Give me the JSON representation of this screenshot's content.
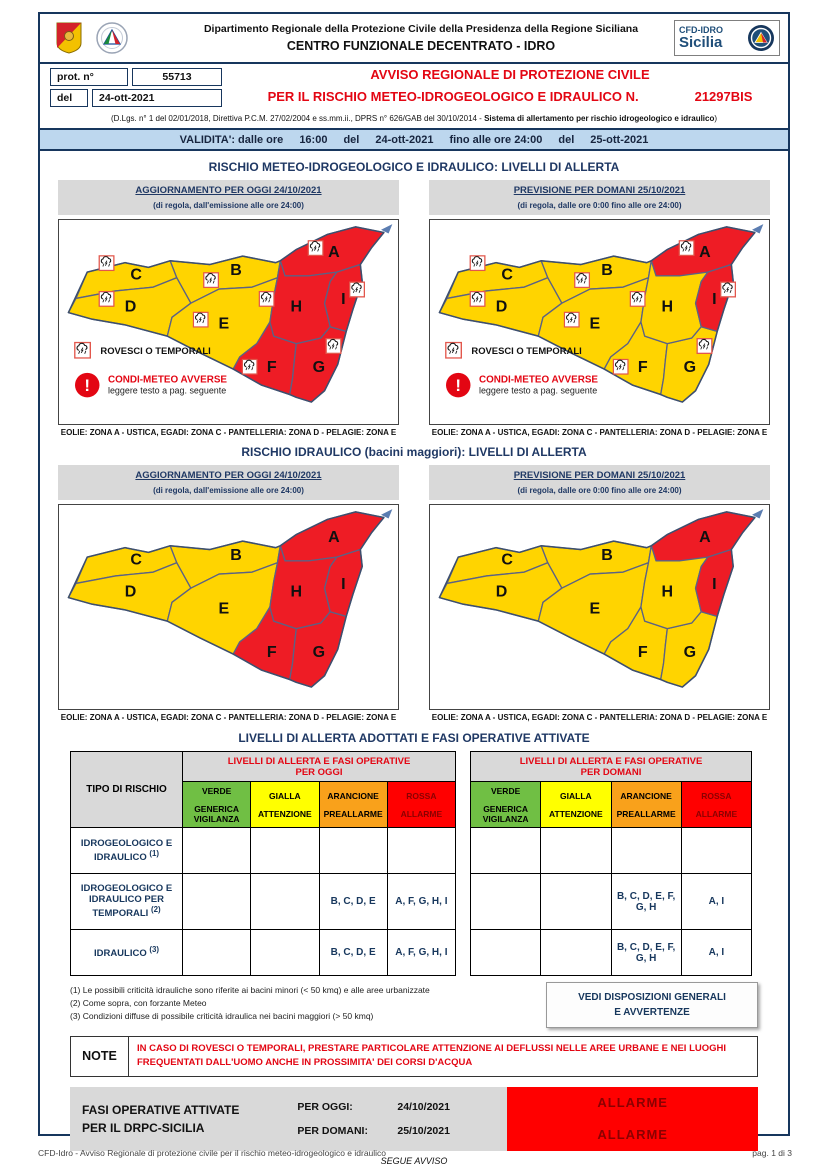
{
  "colors": {
    "navy": "#1F3864",
    "red": "#E30613",
    "light_blue": "#BDD7EE",
    "grey": "#D9D9D9",
    "zone_red": "#EE1C25",
    "zone_yellow": "#FFD400"
  },
  "header": {
    "dept_line1": "Dipartimento Regionale della Protezione Civile della Presidenza della Regione Siciliana",
    "dept_line2": "CENTRO FUNZIONALE DECENTRATO - IDRO",
    "cfd_logo_line1": "CFD-IDRO",
    "cfd_logo_line2": "Sicilia",
    "prot_label": "prot. n°",
    "prot_value": "55713",
    "del_label": "del",
    "del_value": "24-ott-2021",
    "title_line1": "AVVISO REGIONALE DI PROTEZIONE CIVILE",
    "title_line2": "PER IL RISCHIO METEO-IDROGEOLOGICO E IDRAULICO N.",
    "title_number": "21297BIS",
    "legal_open": "(D.Lgs. n° 1 del 02/01/2018, Direttiva P.C.M. 27/02/2004 e ss.mm.ii., DPRS n° 626/GAB del 30/10/2014 - ",
    "legal_bold": "Sistema di allertamento per rischio idrogeologico e idraulico",
    "legal_close": ")"
  },
  "validity": {
    "label": "VALIDITA': dalle ore",
    "time_from": "16:00",
    "del1": "del",
    "date_from": "24-ott-2021",
    "until": "fino alle ore 24:00",
    "del2": "del",
    "date_to": "25-ott-2021"
  },
  "section_meteo": {
    "title": "RISCHIO METEO-IDROGEOLOGICO E IDRAULICO: LIVELLI DI ALLERTA",
    "left_title": "AGGIORNAMENTO PER OGGI 24/10/2021",
    "left_sub": "(di regola, dall'emissione alle ore 24:00)",
    "right_title": "PREVISIONE PER DOMANI 25/10/2021",
    "right_sub": "(di regola, dalle ore 0:00 fino alle ore 24:00)",
    "caption": "EOLIE: ZONA A - USTICA, EGADI: ZONA C - PANTELLERIA: ZONA D - PELAGIE: ZONA E"
  },
  "section_idraulico": {
    "title": "RISCHIO IDRAULICO (bacini maggiori): LIVELLI DI ALLERTA",
    "left_title": "AGGIORNAMENTO PER OGGI 24/10/2021",
    "left_sub": "(di regola, dall'emissione alle ore 24:00)",
    "right_title": "PREVISIONE PER DOMANI 25/10/2021",
    "right_sub": "(di regola, dalle ore 0:00 fino alle ore 24:00)",
    "caption": "EOLIE: ZONA A - USTICA, EGADI: ZONA C - PANTELLERIA: ZONA D - PELAGIE: ZONA E"
  },
  "legend": {
    "storm": "ROVESCI O TEMPORALI",
    "adverse_title": "CONDI-METEO AVVERSE",
    "adverse_sub": "leggere testo a pag. seguente",
    "exclamation": "!"
  },
  "maps": {
    "zone_letters": [
      "A",
      "B",
      "C",
      "D",
      "E",
      "F",
      "G",
      "H",
      "I"
    ],
    "zone_colors": {
      "red": "#EE1C25",
      "yellow": "#FFD400"
    },
    "meteo_today": {
      "levels": {
        "A": "red",
        "B": "yellow",
        "C": "yellow",
        "D": "yellow",
        "E": "yellow",
        "F": "red",
        "G": "red",
        "H": "red",
        "I": "red"
      },
      "storm_icons": true,
      "legend": true
    },
    "meteo_tomorrow": {
      "levels": {
        "A": "red",
        "B": "yellow",
        "C": "yellow",
        "D": "yellow",
        "E": "yellow",
        "F": "yellow",
        "G": "yellow",
        "H": "yellow",
        "I": "red"
      },
      "storm_icons": true,
      "legend": true
    },
    "idraulico_today": {
      "levels": {
        "A": "red",
        "B": "yellow",
        "C": "yellow",
        "D": "yellow",
        "E": "yellow",
        "F": "red",
        "G": "red",
        "H": "red",
        "I": "red"
      },
      "storm_icons": false,
      "legend": false
    },
    "idraulico_tomorrow": {
      "levels": {
        "A": "red",
        "B": "yellow",
        "C": "yellow",
        "D": "yellow",
        "E": "yellow",
        "F": "yellow",
        "G": "yellow",
        "H": "yellow",
        "I": "red"
      },
      "storm_icons": false,
      "legend": false
    }
  },
  "alert_table": {
    "title": "LIVELLI DI ALLERTA ADOTTATI E FASI OPERATIVE ATTIVATE",
    "risk_col_header": "TIPO DI RISCHIO",
    "today_title_line1": "LIVELLI DI ALLERTA E FASI OPERATIVE",
    "today_title_line2": "PER OGGI",
    "tomorrow_title_line1": "LIVELLI DI ALLERTA E FASI OPERATIVE",
    "tomorrow_title_line2": "PER DOMANI",
    "levels": [
      {
        "name": "VERDE",
        "phase": "GENERICA\nVIGILANZA",
        "bg": "#70BF44",
        "fg": "#000000"
      },
      {
        "name": "GIALLA",
        "phase": "ATTENZIONE",
        "bg": "#FFFF00",
        "fg": "#000000"
      },
      {
        "name": "ARANCIONE",
        "phase": "PREALLARME",
        "bg": "#F9A11B",
        "fg": "#000000"
      },
      {
        "name": "ROSSA",
        "phase": "ALLARME",
        "bg": "#FF0000",
        "fg": "#8B0000"
      }
    ],
    "rows": [
      {
        "risk": "IDROGEOLOGICO E IDRAULICO",
        "sup": "(1)",
        "today": [
          "",
          "",
          "",
          ""
        ],
        "tomorrow": [
          "",
          "",
          "",
          ""
        ]
      },
      {
        "risk": "IDROGEOLOGICO E IDRAULICO PER TEMPORALI",
        "sup": "(2)",
        "today": [
          "",
          "",
          "B, C, D, E",
          "A, F, G, H, I"
        ],
        "tomorrow": [
          "",
          "",
          "B, C, D, E, F, G, H",
          "A, I"
        ]
      },
      {
        "risk": "IDRAULICO",
        "sup": "(3)",
        "today": [
          "",
          "",
          "B, C, D, E",
          "A, F, G, H, I"
        ],
        "tomorrow": [
          "",
          "",
          "B, C, D, E, F, G, H",
          "A, I"
        ]
      }
    ],
    "footnotes": [
      "(1) Le possibili criticità idrauliche sono riferite ai bacini minori (< 50 kmq) e alle aree urbanizzate",
      "(2) Come sopra, con forzante Meteo",
      "(3) Condizioni diffuse di possibile criticità idraulica nei bacini maggiori (> 50 kmq)"
    ],
    "vedi_line1": "VEDI DISPOSIZIONI GENERALI",
    "vedi_line2": "E AVVERTENZE",
    "note_label": "NOTE",
    "note_text": "IN CASO DI ROVESCI O TEMPORALI, PRESTARE PARTICOLARE ATTENZIONE AI DEFLUSSI NELLE AREE URBANE E NEI LUOGHI FREQUENTATI DALL'UOMO ANCHE IN PROSSIMITA' DEI CORSI D'ACQUA"
  },
  "operative": {
    "label_line1": "FASI OPERATIVE ATTIVATE",
    "label_line2": "PER IL DRPC-SICILIA",
    "today_label": "PER OGGI:",
    "today_date": "24/10/2021",
    "tomorrow_label": "PER DOMANI:",
    "tomorrow_date": "25/10/2021",
    "today_phase": "ALLARME",
    "tomorrow_phase": "ALLARME"
  },
  "footer": {
    "segue": "SEGUE AVVISO",
    "left": "CFD-Idro - Avviso Regionale di protezione civile per il rischio meteo-idrogeologico e idraulico",
    "right": "pag. 1 di 3"
  }
}
